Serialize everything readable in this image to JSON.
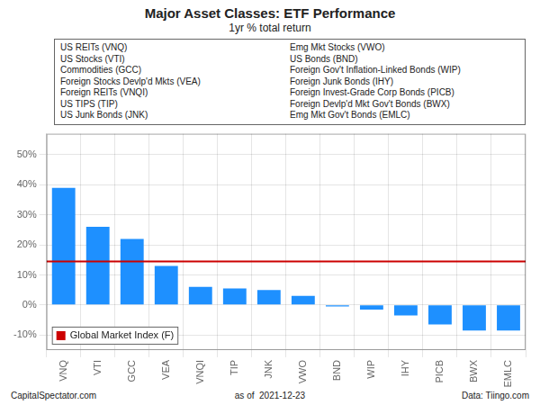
{
  "chart_data": {
    "type": "bar",
    "title": "Major Asset Classes: ETF Performance",
    "subtitle": "1yr % total return",
    "categories": [
      "VNQ",
      "VTI",
      "GCC",
      "VEA",
      "VNQI",
      "TIP",
      "JNK",
      "VWO",
      "BND",
      "WIP",
      "IHY",
      "PICB",
      "BWX",
      "EMLC"
    ],
    "values": [
      39.0,
      26.0,
      22.0,
      13.0,
      6.0,
      5.5,
      5.0,
      3.0,
      -0.5,
      -1.5,
      -3.5,
      -6.5,
      -8.5,
      -8.5
    ],
    "color": "#1e90ff",
    "reference_line": {
      "value": 14.5,
      "name": "Global Market Index (F)",
      "color": "#cc0000"
    },
    "ylim": [
      -15,
      57
    ],
    "yticks": [
      {
        "value": -10,
        "label": "-10%"
      },
      {
        "value": 0,
        "label": "0%"
      },
      {
        "value": 10,
        "label": "10%"
      },
      {
        "value": 20,
        "label": "20%"
      },
      {
        "value": 30,
        "label": "30%"
      },
      {
        "value": 40,
        "label": "40%"
      },
      {
        "value": 50,
        "label": "50%"
      }
    ],
    "grid": true,
    "legend": "lower left",
    "annotations": [
      "US REITs (VNQ)",
      "US Stocks (VTI)",
      "Commodities (GCC)",
      "Foreign Stocks Devlp'd Mkts (VEA)",
      "Foreign REITs (VNQI)",
      "US TIPS (TIP)",
      "US Junk Bonds (JNK)",
      "Emg Mkt Stocks (VWO)",
      "US Bonds (BND)",
      "Foreign Gov't Inflation-Linked Bonds (WIP)",
      "Foreign Junk Bonds (IHY)",
      "Foreign Invest-Grade Corp Bonds (PICB)",
      "Foreign Devlp'd Mkt Gov't Bonds (BWX)",
      "Emg Mkt Gov't Bonds (EMLC)"
    ],
    "footer": [
      "CapitalSpectator.com",
      "as of  2021-12-23",
      "Data: Tiingo.com"
    ]
  }
}
